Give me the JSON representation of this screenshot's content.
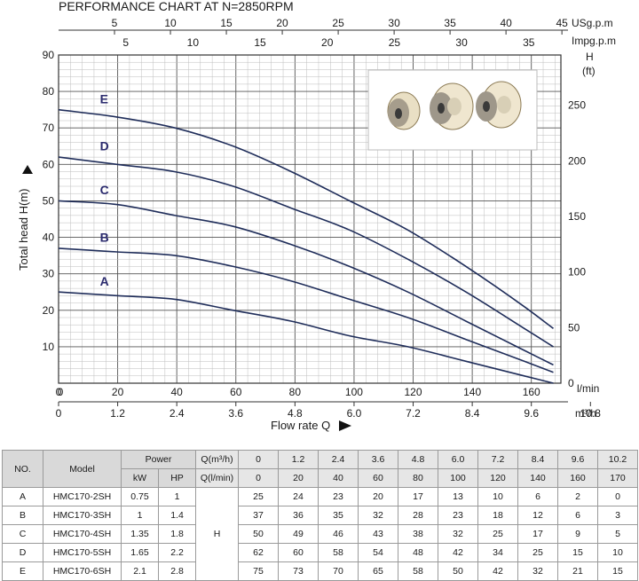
{
  "chart_data": {
    "type": "line",
    "title": "PERFORMANCE CHART AT N=2850RPM",
    "xlabel": "Flow rate Q",
    "ylabel": "Total head H(m)",
    "x": [
      0,
      20,
      40,
      60,
      80,
      100,
      120,
      140,
      160,
      170
    ],
    "xlim": [
      0,
      170
    ],
    "ylim": [
      0,
      90
    ],
    "x_ticks": [
      "0",
      "20",
      "40",
      "60",
      "80",
      "100",
      "120",
      "140",
      "160"
    ],
    "x_unit": "l/min",
    "m3h_ticks": [
      "0",
      "1.2",
      "2.4",
      "3.6",
      "4.8",
      "6.0",
      "7.2",
      "8.4",
      "9.6",
      "10.8"
    ],
    "m3h_unit": "m³/h",
    "y_ticks": [
      "10",
      "20",
      "30",
      "40",
      "50",
      "60",
      "70",
      "80",
      "90"
    ],
    "y_zero": "0",
    "usgpm_ticks": [
      "5",
      "10",
      "15",
      "20",
      "25",
      "30",
      "35",
      "40",
      "45"
    ],
    "usgpm_unit": "USg.p.m",
    "impgpm_ticks": [
      "5",
      "10",
      "15",
      "20",
      "25",
      "30",
      "35"
    ],
    "impgpm_unit": "Impg.p.m",
    "ft_ticks": [
      "0",
      "50",
      "100",
      "150",
      "200",
      "250"
    ],
    "ft_unit_h": "H",
    "ft_unit": "(ft)",
    "series": [
      {
        "name": "A",
        "values": [
          25,
          24,
          23,
          20,
          17,
          13,
          10,
          6,
          2,
          0
        ]
      },
      {
        "name": "B",
        "values": [
          37,
          36,
          35,
          32,
          28,
          23,
          18,
          12,
          6,
          3
        ]
      },
      {
        "name": "C",
        "values": [
          50,
          49,
          46,
          43,
          38,
          32,
          25,
          17,
          9,
          5
        ]
      },
      {
        "name": "D",
        "values": [
          62,
          60,
          58,
          54,
          48,
          42,
          34,
          25,
          15,
          10
        ]
      },
      {
        "name": "E",
        "values": [
          75,
          73,
          70,
          65,
          58,
          50,
          42,
          32,
          21,
          15
        ]
      }
    ]
  },
  "table": {
    "h_no": "NO.",
    "h_model": "Model",
    "h_power": "Power",
    "h_kw": "kW",
    "h_hp": "HP",
    "h_q_m3h": "Q(m³/h)",
    "h_q_lmin": "Q(l/min)",
    "q_m3h": [
      "0",
      "1.2",
      "2.4",
      "3.6",
      "4.8",
      "6.0",
      "7.2",
      "8.4",
      "9.6",
      "10.2"
    ],
    "q_lmin": [
      "0",
      "20",
      "40",
      "60",
      "80",
      "100",
      "120",
      "140",
      "160",
      "170"
    ],
    "h_label": "H",
    "rows": [
      {
        "no": "A",
        "model": "HMC170-2SH",
        "kw": "0.75",
        "hp": "1",
        "h": [
          "25",
          "24",
          "23",
          "20",
          "17",
          "13",
          "10",
          "6",
          "2",
          "0"
        ]
      },
      {
        "no": "B",
        "model": "HMC170-3SH",
        "kw": "1",
        "hp": "1.4",
        "h": [
          "37",
          "36",
          "35",
          "32",
          "28",
          "23",
          "18",
          "12",
          "6",
          "3"
        ]
      },
      {
        "no": "C",
        "model": "HMC170-4SH",
        "kw": "1.35",
        "hp": "1.8",
        "h": [
          "50",
          "49",
          "46",
          "43",
          "38",
          "32",
          "25",
          "17",
          "9",
          "5"
        ]
      },
      {
        "no": "D",
        "model": "HMC170-5SH",
        "kw": "1.65",
        "hp": "2.2",
        "h": [
          "62",
          "60",
          "58",
          "54",
          "48",
          "42",
          "34",
          "25",
          "15",
          "10"
        ]
      },
      {
        "no": "E",
        "model": "HMC170-6SH",
        "kw": "2.1",
        "hp": "2.8",
        "h": [
          "75",
          "73",
          "70",
          "65",
          "58",
          "50",
          "42",
          "32",
          "21",
          "15"
        ]
      }
    ]
  },
  "colors": {
    "curve": "#1f2d5a",
    "grid_major": "#555555",
    "grid_minor": "#bdbdbd",
    "header_bg": "#d9d9d9"
  }
}
